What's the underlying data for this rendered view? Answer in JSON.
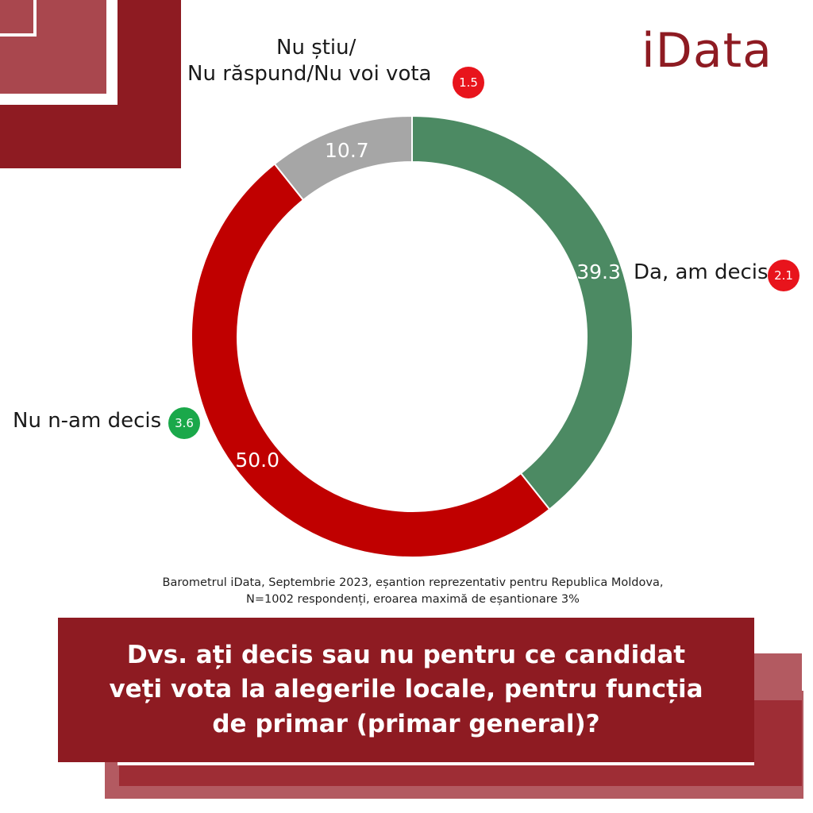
{
  "brand": {
    "logo_text": "iData"
  },
  "colors": {
    "brand": "#8e1b22",
    "decided": "#4c8a63",
    "undecided": "#c00000",
    "dont_know": "#a6a6a6",
    "badge_red": "#e8141c",
    "badge_green": "#1aa84a"
  },
  "chart_data": {
    "type": "pie",
    "variant": "donut",
    "title": "",
    "slices": [
      {
        "label": "Da, am decis",
        "value": 39.3,
        "change": "2.1",
        "change_color": "#e8141c",
        "color": "#4c8a63"
      },
      {
        "label": "Nu n-am decis",
        "value": 50.0,
        "change": "3.6",
        "change_color": "#1aa84a",
        "color": "#c00000"
      },
      {
        "label": "Nu știu/\nNu răspund/Nu  voi vota",
        "value": 10.7,
        "change": "1.5",
        "change_color": "#e8141c",
        "color": "#a6a6a6"
      }
    ],
    "data_labels": [
      "39.3",
      "50.0",
      "10.7"
    ],
    "legend": "none"
  },
  "labels": {
    "decided": "Da, am decis",
    "undecided": "Nu n-am decis",
    "dont_know_line1": "Nu știu/",
    "dont_know_line2": "Nu răspund/Nu  voi vota"
  },
  "badges": {
    "decided": "2.1",
    "undecided": "3.6",
    "dont_know": "1.5"
  },
  "source": {
    "line1": "Barometrul iData, Septembrie 2023, eșantion reprezentativ pentru Republica Moldova,",
    "line2": "N=1002 respondenți, eroarea maximă de eșantionare 3%"
  },
  "question": {
    "line1": "Dvs. ați decis sau nu pentru ce candidat",
    "line2": "veți vota la alegerile locale, pentru funcția",
    "line3": "de primar (primar general)?"
  }
}
